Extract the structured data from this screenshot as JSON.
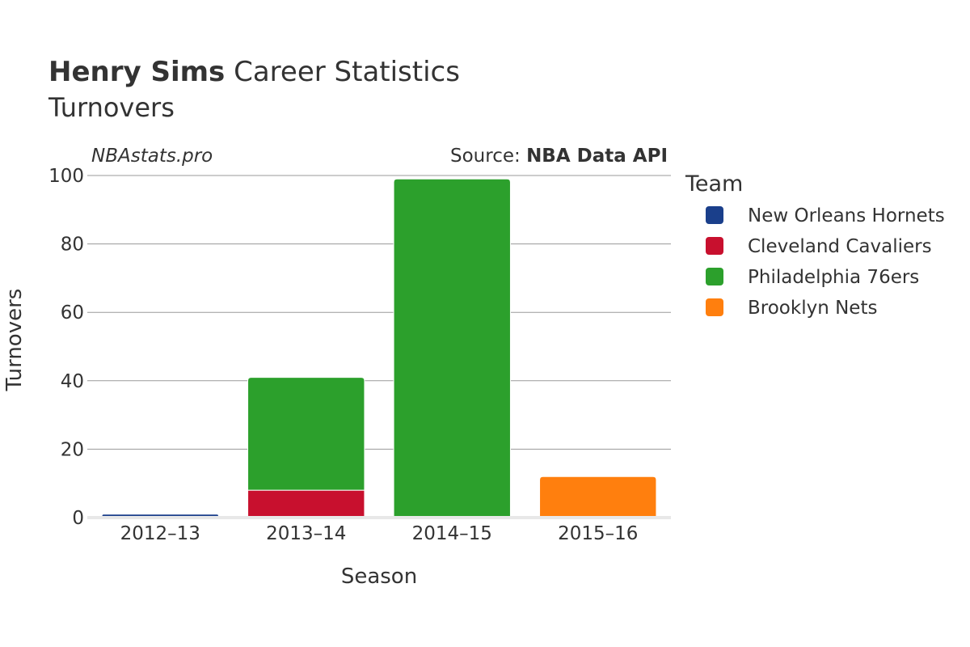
{
  "title": {
    "player": "Henry Sims",
    "suffix": " Career Statistics",
    "subtitle": "Turnovers"
  },
  "watermark": "NBAstats.pro",
  "source": {
    "prefix": "Source: ",
    "name": "NBA Data API"
  },
  "chart_data": {
    "type": "bar",
    "stacked": true,
    "xlabel": "Season",
    "ylabel": "Turnovers",
    "ylim": [
      0,
      100
    ],
    "yticks": [
      0,
      20,
      40,
      60,
      80,
      100
    ],
    "categories": [
      "2012–13",
      "2013–14",
      "2014–15",
      "2015–16"
    ],
    "legend": {
      "title": "Team",
      "position": "right"
    },
    "grid": true,
    "series": [
      {
        "name": "New Orleans Hornets",
        "color": "#1a3f8b",
        "values": [
          1,
          0,
          0,
          0
        ]
      },
      {
        "name": "Cleveland Cavaliers",
        "color": "#c8102e",
        "values": [
          0,
          8,
          0,
          0
        ]
      },
      {
        "name": "Philadelphia 76ers",
        "color": "#2ca02c",
        "values": [
          0,
          33,
          99,
          0
        ]
      },
      {
        "name": "Brooklyn Nets",
        "color": "#ff7f0e",
        "values": [
          0,
          0,
          0,
          12
        ]
      }
    ]
  }
}
